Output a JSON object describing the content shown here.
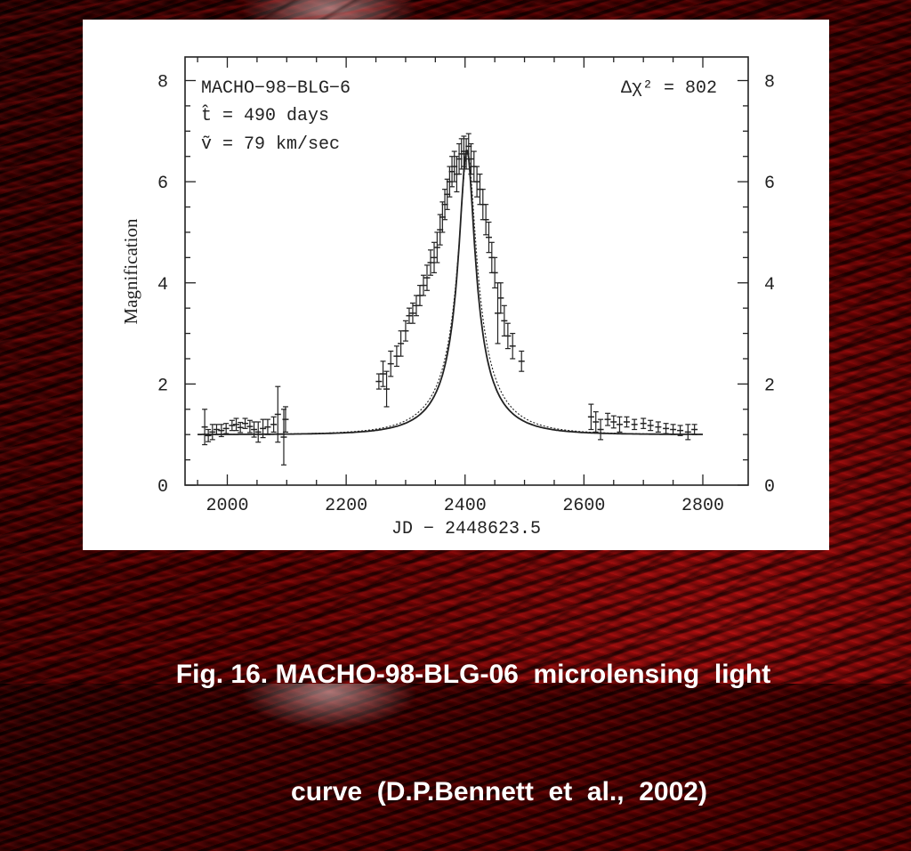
{
  "caption": {
    "line1": "Fig. 16. MACHO-98-BLG-06  microlensing  light",
    "line2": "curve  (D.P.Bennett  et  al.,  2002)"
  },
  "colors": {
    "background": "#3a0000",
    "panel": "#ffffff",
    "ink": "#222222",
    "caption": "#ffffff"
  },
  "chart_data": {
    "type": "scatter",
    "ylabel": "Magnification",
    "xlabel": "JD − 2448623.5",
    "xlim": [
      1950,
      2800
    ],
    "ylim": [
      0,
      8.5
    ],
    "x_ticks": [
      "2000",
      "2200",
      "2400",
      "2600",
      "2800"
    ],
    "x_tick_values": [
      2000,
      2200,
      2400,
      2600,
      2800
    ],
    "y_ticks": [
      "0",
      "2",
      "4",
      "6",
      "8"
    ],
    "y_tick_values": [
      0,
      2,
      4,
      6,
      8
    ],
    "annotations": {
      "event": "MACHO−98−BLG−6",
      "t_hat": "t̂  =  490 days",
      "v_tilde": "ṽ  =  79 km/sec",
      "delta_chi2": "Δχ²  =  802"
    },
    "model_fits": [
      {
        "style": "solid",
        "t0": 2403,
        "umin": 0.152,
        "tE": 86
      },
      {
        "style": "dotted",
        "t0": 2404,
        "umin": 0.153,
        "tE": 95
      }
    ],
    "points": [
      {
        "x": 1962,
        "y": 1.15,
        "err": 0.35
      },
      {
        "x": 1968,
        "y": 0.98,
        "err": 0.12
      },
      {
        "x": 1975,
        "y": 1.05,
        "err": 0.15
      },
      {
        "x": 1982,
        "y": 1.1,
        "err": 0.1
      },
      {
        "x": 1990,
        "y": 1.08,
        "err": 0.12
      },
      {
        "x": 1998,
        "y": 1.12,
        "err": 0.1
      },
      {
        "x": 2008,
        "y": 1.18,
        "err": 0.1
      },
      {
        "x": 2015,
        "y": 1.2,
        "err": 0.12
      },
      {
        "x": 2022,
        "y": 1.14,
        "err": 0.1
      },
      {
        "x": 2030,
        "y": 1.22,
        "err": 0.1
      },
      {
        "x": 2038,
        "y": 1.16,
        "err": 0.12
      },
      {
        "x": 2045,
        "y": 1.1,
        "err": 0.15
      },
      {
        "x": 2052,
        "y": 1.05,
        "err": 0.2
      },
      {
        "x": 2060,
        "y": 1.12,
        "err": 0.18
      },
      {
        "x": 2068,
        "y": 1.15,
        "err": 0.15
      },
      {
        "x": 2078,
        "y": 1.2,
        "err": 0.15
      },
      {
        "x": 2085,
        "y": 1.4,
        "err": 0.55
      },
      {
        "x": 2095,
        "y": 0.95,
        "err": 0.55
      },
      {
        "x": 2098,
        "y": 1.3,
        "err": 0.25
      },
      {
        "x": 2255,
        "y": 2.05,
        "err": 0.15
      },
      {
        "x": 2262,
        "y": 2.2,
        "err": 0.25
      },
      {
        "x": 2268,
        "y": 1.9,
        "err": 0.35
      },
      {
        "x": 2275,
        "y": 2.4,
        "err": 0.25
      },
      {
        "x": 2285,
        "y": 2.55,
        "err": 0.2
      },
      {
        "x": 2292,
        "y": 2.8,
        "err": 0.25
      },
      {
        "x": 2300,
        "y": 3.05,
        "err": 0.2
      },
      {
        "x": 2306,
        "y": 3.35,
        "err": 0.15
      },
      {
        "x": 2312,
        "y": 3.4,
        "err": 0.2
      },
      {
        "x": 2318,
        "y": 3.55,
        "err": 0.2
      },
      {
        "x": 2324,
        "y": 3.75,
        "err": 0.2
      },
      {
        "x": 2330,
        "y": 3.95,
        "err": 0.2
      },
      {
        "x": 2336,
        "y": 4.1,
        "err": 0.25
      },
      {
        "x": 2342,
        "y": 4.4,
        "err": 0.25
      },
      {
        "x": 2348,
        "y": 4.5,
        "err": 0.3
      },
      {
        "x": 2353,
        "y": 4.7,
        "err": 0.3
      },
      {
        "x": 2358,
        "y": 5.05,
        "err": 0.3
      },
      {
        "x": 2362,
        "y": 5.3,
        "err": 0.3
      },
      {
        "x": 2366,
        "y": 5.55,
        "err": 0.3
      },
      {
        "x": 2370,
        "y": 5.75,
        "err": 0.3
      },
      {
        "x": 2374,
        "y": 6.0,
        "err": 0.3
      },
      {
        "x": 2378,
        "y": 6.2,
        "err": 0.3
      },
      {
        "x": 2382,
        "y": 6.3,
        "err": 0.3
      },
      {
        "x": 2386,
        "y": 6.15,
        "err": 0.35
      },
      {
        "x": 2390,
        "y": 6.45,
        "err": 0.3
      },
      {
        "x": 2394,
        "y": 6.55,
        "err": 0.3
      },
      {
        "x": 2398,
        "y": 6.6,
        "err": 0.3
      },
      {
        "x": 2402,
        "y": 6.55,
        "err": 0.3
      },
      {
        "x": 2406,
        "y": 6.7,
        "err": 0.25
      },
      {
        "x": 2410,
        "y": 6.45,
        "err": 0.3
      },
      {
        "x": 2415,
        "y": 6.3,
        "err": 0.3
      },
      {
        "x": 2420,
        "y": 6.0,
        "err": 0.3
      },
      {
        "x": 2425,
        "y": 5.85,
        "err": 0.3
      },
      {
        "x": 2430,
        "y": 5.55,
        "err": 0.3
      },
      {
        "x": 2435,
        "y": 5.25,
        "err": 0.3
      },
      {
        "x": 2440,
        "y": 4.9,
        "err": 0.3
      },
      {
        "x": 2445,
        "y": 4.5,
        "err": 0.3
      },
      {
        "x": 2450,
        "y": 4.2,
        "err": 0.3
      },
      {
        "x": 2455,
        "y": 3.4,
        "err": 0.6
      },
      {
        "x": 2460,
        "y": 3.7,
        "err": 0.3
      },
      {
        "x": 2466,
        "y": 3.25,
        "err": 0.3
      },
      {
        "x": 2472,
        "y": 2.95,
        "err": 0.25
      },
      {
        "x": 2480,
        "y": 2.75,
        "err": 0.25
      },
      {
        "x": 2495,
        "y": 2.45,
        "err": 0.2
      },
      {
        "x": 2612,
        "y": 1.35,
        "err": 0.25
      },
      {
        "x": 2620,
        "y": 1.25,
        "err": 0.2
      },
      {
        "x": 2628,
        "y": 1.1,
        "err": 0.2
      },
      {
        "x": 2640,
        "y": 1.3,
        "err": 0.12
      },
      {
        "x": 2650,
        "y": 1.25,
        "err": 0.12
      },
      {
        "x": 2660,
        "y": 1.2,
        "err": 0.15
      },
      {
        "x": 2672,
        "y": 1.25,
        "err": 0.1
      },
      {
        "x": 2685,
        "y": 1.2,
        "err": 0.1
      },
      {
        "x": 2700,
        "y": 1.22,
        "err": 0.1
      },
      {
        "x": 2712,
        "y": 1.18,
        "err": 0.1
      },
      {
        "x": 2725,
        "y": 1.15,
        "err": 0.1
      },
      {
        "x": 2738,
        "y": 1.12,
        "err": 0.1
      },
      {
        "x": 2750,
        "y": 1.1,
        "err": 0.1
      },
      {
        "x": 2762,
        "y": 1.08,
        "err": 0.1
      },
      {
        "x": 2775,
        "y": 1.05,
        "err": 0.15
      },
      {
        "x": 2786,
        "y": 1.1,
        "err": 0.1
      }
    ]
  }
}
